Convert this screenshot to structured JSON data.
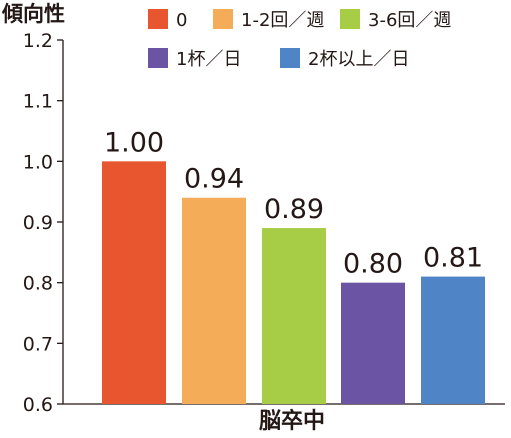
{
  "chart_data": {
    "type": "bar",
    "ylabel": "傾向性",
    "xlabel": "脳卒中",
    "ylim": [
      0.6,
      1.2
    ],
    "yticks": [
      "0.6",
      "0.7",
      "0.8",
      "0.9",
      "1.0",
      "1.1",
      "1.2"
    ],
    "grid": false,
    "legend_position": "top",
    "series": [
      {
        "name": "0",
        "value": 1.0,
        "label": "1.00",
        "color": "#e8562f"
      },
      {
        "name": "1-2回／週",
        "value": 0.94,
        "label": "0.94",
        "color": "#f5ac58"
      },
      {
        "name": "3-6回／週",
        "value": 0.89,
        "label": "0.89",
        "color": "#a7cc45"
      },
      {
        "name": "1杯／日",
        "value": 0.8,
        "label": "0.80",
        "color": "#6a54a3"
      },
      {
        "name": "2杯以上／日",
        "value": 0.81,
        "label": "0.81",
        "color": "#4f84c7"
      }
    ]
  }
}
